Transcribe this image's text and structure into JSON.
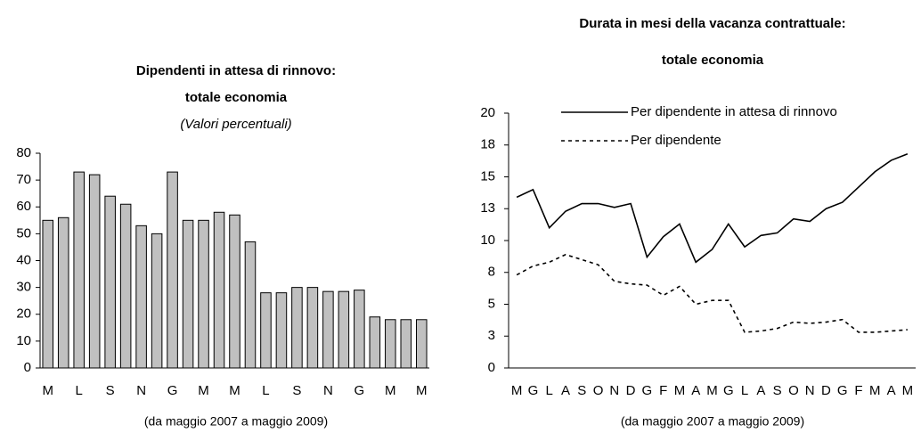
{
  "chart_data": [
    {
      "type": "bar",
      "title": [
        "Dipendenti in attesa di rinnovo:",
        "totale economia"
      ],
      "subtitle": "(Valori percentuali)",
      "footnote": "(da maggio 2007 a maggio 2009)",
      "categories": [
        "M",
        null,
        "L",
        null,
        "S",
        null,
        "N",
        null,
        "G",
        null,
        "M",
        null,
        "M",
        null,
        "L",
        null,
        "S",
        null,
        "N",
        null,
        "G",
        null,
        "M",
        null,
        "M"
      ],
      "values": [
        55,
        56,
        73,
        72,
        64,
        61,
        53,
        50,
        73,
        55,
        55,
        58,
        57,
        47,
        28,
        28,
        30,
        30,
        28.5,
        28.5,
        29,
        19,
        18,
        18,
        18
      ],
      "color": "#c0c0c0",
      "ylim": [
        0,
        80
      ],
      "yticks": [
        0,
        10,
        20,
        30,
        40,
        50,
        60,
        70,
        80
      ]
    },
    {
      "type": "line",
      "title": [
        "Durata in mesi della vacanza contrattuale:",
        "totale economia"
      ],
      "footnote": "(da maggio 2007 a maggio 2009)",
      "categories": [
        "M",
        "G",
        "L",
        "A",
        "S",
        "O",
        "N",
        "D",
        "G",
        "F",
        "M",
        "A",
        "M",
        "G",
        "L",
        "A",
        "S",
        "O",
        "N",
        "D",
        "G",
        "F",
        "M",
        "A",
        "M"
      ],
      "series": [
        {
          "name": "Per dipendente in attesa di rinnovo",
          "color": "#000000",
          "dash": "solid",
          "values": [
            13.4,
            14.0,
            11.0,
            12.3,
            12.9,
            12.9,
            12.6,
            12.9,
            8.7,
            10.3,
            11.3,
            8.3,
            9.3,
            11.3,
            9.5,
            10.4,
            10.6,
            11.7,
            11.5,
            12.5,
            13.0,
            14.2,
            15.4,
            16.3,
            16.8
          ]
        },
        {
          "name": "Per dipendente",
          "color": "#000000",
          "dash": "dashed",
          "values": [
            7.3,
            8.0,
            8.3,
            8.9,
            8.5,
            8.1,
            6.8,
            6.6,
            6.5,
            5.7,
            6.4,
            5.0,
            5.3,
            5.3,
            2.8,
            2.9,
            3.1,
            3.6,
            3.5,
            3.6,
            3.8,
            2.8,
            2.8,
            2.9,
            3.0
          ]
        }
      ],
      "ylim": [
        0,
        20
      ],
      "yticks": [
        0,
        {
          "value": 2.5,
          "label": "3"
        },
        5,
        {
          "value": 7.5,
          "label": "8"
        },
        10,
        {
          "value": 12.5,
          "label": "13"
        },
        15,
        {
          "value": 17.5,
          "label": "18"
        },
        20
      ]
    }
  ]
}
